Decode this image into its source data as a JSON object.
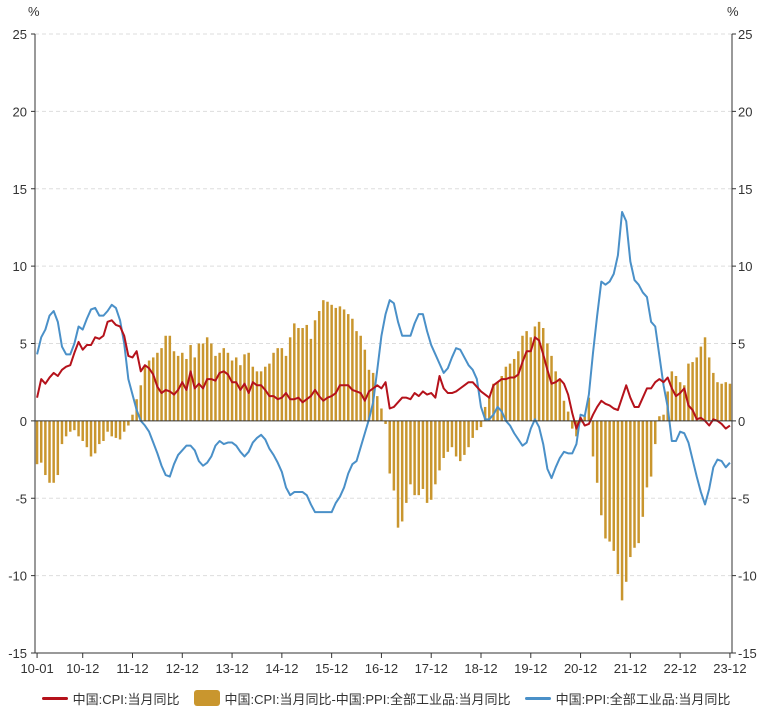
{
  "chart_data": {
    "type": "bar+line",
    "unit_left": "%",
    "unit_right": "%",
    "y_range": [
      -15,
      25
    ],
    "y_ticks": [
      25,
      20,
      15,
      10,
      5,
      0,
      -5,
      -10,
      -15
    ],
    "x_tick_labels": [
      "10-01",
      "10-12",
      "11-12",
      "12-12",
      "13-12",
      "14-12",
      "15-12",
      "16-12",
      "17-12",
      "18-12",
      "19-12",
      "20-12",
      "21-12",
      "22-12",
      "23-12"
    ],
    "x_start": "2010-01",
    "x_end": "2023-12",
    "colors": {
      "cpi": "#b5121b",
      "gap": "#c9962e",
      "ppi": "#4a90c8",
      "grid": "#dddddd",
      "axis": "#333333"
    },
    "series": [
      {
        "name": "中国:CPI:当月同比",
        "key": "cpi",
        "kind": "line",
        "annual": [
          [
            1.5,
            2.7,
            2.4,
            2.8,
            3.1,
            2.9,
            3.3,
            3.5,
            3.6,
            4.4,
            5.1,
            4.6
          ],
          [
            4.9,
            4.9,
            5.4,
            5.3,
            5.5,
            6.4,
            6.5,
            6.2,
            6.1,
            5.5,
            4.2,
            4.1
          ],
          [
            4.5,
            3.2,
            3.6,
            3.4,
            3.0,
            2.2,
            1.8,
            2.0,
            1.9,
            1.7,
            2.0,
            2.5
          ],
          [
            2.0,
            3.2,
            2.1,
            2.4,
            2.1,
            2.7,
            2.7,
            2.6,
            3.1,
            3.2,
            3.0,
            2.5
          ],
          [
            2.5,
            2.0,
            2.4,
            1.8,
            2.5,
            2.3,
            2.3,
            2.0,
            1.6,
            1.6,
            1.4,
            1.5
          ],
          [
            1.8,
            1.4,
            1.4,
            1.5,
            1.2,
            1.4,
            1.6,
            2.0,
            1.6,
            1.3,
            1.5,
            1.6
          ],
          [
            1.8,
            2.3,
            2.3,
            2.3,
            2.0,
            1.9,
            1.8,
            1.3,
            1.9,
            2.1,
            2.3,
            2.1
          ],
          [
            2.5,
            0.8,
            0.9,
            1.2,
            1.5,
            1.5,
            1.4,
            1.8,
            1.6,
            1.9,
            1.7,
            1.8
          ],
          [
            1.5,
            2.9,
            2.1,
            1.8,
            1.8,
            1.9,
            2.1,
            2.3,
            2.5,
            2.5,
            2.2,
            1.9
          ],
          [
            1.7,
            1.5,
            2.3,
            2.5,
            2.7,
            2.7,
            2.8,
            2.8,
            3.0,
            3.8,
            4.5,
            4.5
          ],
          [
            5.4,
            5.2,
            4.3,
            3.3,
            2.4,
            2.5,
            2.7,
            2.4,
            1.7,
            0.5,
            -0.5,
            0.2
          ],
          [
            -0.3,
            -0.2,
            0.4,
            0.9,
            1.3,
            1.1,
            1.0,
            0.8,
            0.7,
            1.5,
            2.3,
            1.5
          ],
          [
            0.9,
            0.9,
            1.5,
            2.1,
            2.1,
            2.5,
            2.7,
            2.5,
            2.8,
            2.1,
            1.6,
            1.8
          ],
          [
            2.1,
            1.0,
            0.7,
            0.1,
            0.2,
            0.0,
            -0.3,
            0.1,
            0.0,
            -0.2,
            -0.5,
            -0.3
          ]
        ]
      },
      {
        "name": "中国:CPI:当月同比-中国:PPI:全部工业品:当月同比",
        "key": "gap",
        "kind": "bar",
        "annual": [
          [
            -2.8,
            -2.7,
            -3.5,
            -4.0,
            -4.0,
            -3.5,
            -1.5,
            -1.0,
            -0.7,
            -0.6,
            -1.0,
            -1.3
          ],
          [
            -1.7,
            -2.3,
            -2.1,
            -1.5,
            -1.3,
            -0.7,
            -1.0,
            -1.1,
            -1.2,
            -0.7,
            -0.3,
            0.4
          ],
          [
            1.4,
            2.3,
            3.5,
            3.9,
            4.1,
            4.4,
            4.7,
            5.5,
            5.5,
            4.5,
            4.2,
            4.4
          ],
          [
            4.0,
            4.9,
            4.1,
            5.0,
            5.0,
            5.4,
            5.0,
            4.2,
            4.4,
            4.7,
            4.4,
            3.9
          ],
          [
            4.1,
            3.6,
            4.3,
            4.4,
            3.5,
            3.2,
            3.2,
            3.5,
            3.7,
            4.4,
            4.7,
            4.7
          ],
          [
            4.2,
            5.4,
            6.3,
            6.0,
            6.0,
            6.2,
            5.3,
            6.5,
            7.1,
            7.8,
            7.7,
            7.5
          ],
          [
            7.3,
            7.4,
            7.2,
            6.9,
            6.6,
            5.8,
            5.5,
            4.6,
            3.3,
            3.1,
            1.6,
            0.8
          ],
          [
            -0.2,
            -3.4,
            -4.5,
            -6.9,
            -6.5,
            -5.3,
            -4.1,
            -4.8,
            -4.8,
            -4.4,
            -5.3,
            -5.1
          ],
          [
            -4.1,
            -3.2,
            -2.4,
            -2.0,
            -1.7,
            -2.3,
            -2.6,
            -2.2,
            -1.7,
            -1.1,
            -0.6,
            -0.4
          ],
          [
            0.9,
            1.6,
            2.4,
            2.5,
            2.9,
            3.5,
            3.7,
            4.0,
            4.5,
            5.5,
            5.8,
            5.4
          ],
          [
            6.1,
            6.4,
            6.0,
            5.0,
            4.2,
            3.2,
            2.7,
            1.3,
            0.6,
            -0.5,
            -1.0,
            -0.1
          ],
          [
            0.3,
            1.5,
            -2.3,
            -4.0,
            -6.1,
            -7.6,
            -7.8,
            -8.4,
            -9.9,
            -11.6,
            -10.4,
            -8.8
          ],
          [
            -8.2,
            -7.9,
            -6.2,
            -4.3,
            -3.6,
            -1.5,
            0.3,
            0.4,
            1.9,
            3.2,
            2.9,
            2.5
          ],
          [
            2.3,
            3.7,
            3.8,
            4.1,
            4.8,
            5.4,
            4.1,
            3.1,
            2.5,
            2.4,
            2.5,
            2.4
          ]
        ]
      },
      {
        "name": "中国:PPI:全部工业品:当月同比",
        "key": "ppi",
        "kind": "line",
        "annual": [
          [
            4.3,
            5.4,
            5.9,
            6.8,
            7.1,
            6.4,
            4.8,
            4.3,
            4.3,
            5.0,
            6.1,
            5.9
          ],
          [
            6.6,
            7.2,
            7.3,
            6.8,
            6.8,
            7.1,
            7.5,
            7.3,
            6.5,
            5.0,
            2.7,
            1.7
          ],
          [
            0.7,
            0.0,
            -0.3,
            -0.7,
            -1.4,
            -2.1,
            -2.9,
            -3.5,
            -3.6,
            -2.8,
            -2.2,
            -1.9
          ],
          [
            -1.6,
            -1.6,
            -1.9,
            -2.6,
            -2.9,
            -2.7,
            -2.3,
            -1.6,
            -1.3,
            -1.5,
            -1.4,
            -1.4
          ],
          [
            -1.6,
            -2.0,
            -2.3,
            -2.0,
            -1.4,
            -1.1,
            -0.9,
            -1.2,
            -1.8,
            -2.2,
            -2.7,
            -3.3
          ],
          [
            -4.3,
            -4.8,
            -4.6,
            -4.6,
            -4.6,
            -4.8,
            -5.4,
            -5.9,
            -5.9,
            -5.9,
            -5.9,
            -5.9
          ],
          [
            -5.3,
            -4.9,
            -4.3,
            -3.4,
            -2.8,
            -2.6,
            -1.7,
            -0.8,
            0.1,
            1.2,
            3.3,
            5.5
          ],
          [
            6.9,
            7.8,
            7.6,
            6.4,
            5.5,
            5.5,
            5.5,
            6.3,
            6.9,
            6.9,
            5.8,
            4.9
          ],
          [
            4.3,
            3.7,
            3.1,
            3.4,
            4.1,
            4.7,
            4.6,
            4.1,
            3.6,
            3.3,
            2.7,
            0.9
          ],
          [
            0.1,
            0.1,
            0.4,
            0.9,
            0.6,
            0.0,
            -0.3,
            -0.8,
            -1.2,
            -1.6,
            -1.4,
            -0.5
          ],
          [
            0.1,
            -0.4,
            -1.5,
            -3.1,
            -3.7,
            -3.0,
            -2.4,
            -2.0,
            -2.1,
            -2.1,
            -1.5,
            0.4
          ],
          [
            0.3,
            1.7,
            4.4,
            6.8,
            9.0,
            8.8,
            9.0,
            9.5,
            10.7,
            13.5,
            12.9,
            10.3
          ],
          [
            9.1,
            8.8,
            8.3,
            8.0,
            6.4,
            6.1,
            4.2,
            2.3,
            0.9,
            -1.3,
            -1.3,
            -0.7
          ],
          [
            -0.8,
            -1.4,
            -2.5,
            -3.6,
            -4.6,
            -5.4,
            -4.4,
            -3.0,
            -2.5,
            -2.6,
            -3.0,
            -2.7
          ]
        ]
      }
    ]
  }
}
